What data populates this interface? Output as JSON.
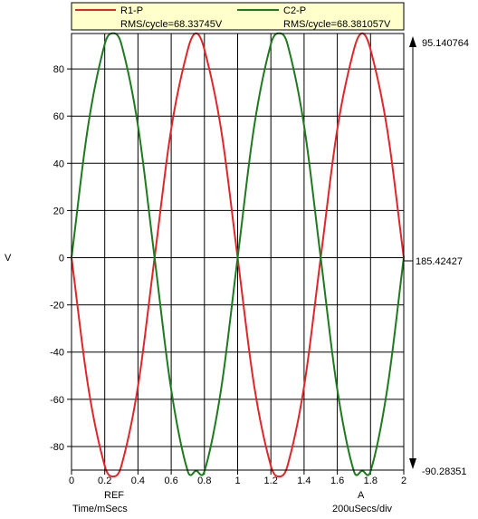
{
  "chart_data": {
    "type": "line",
    "ylabel": "V",
    "xlabel_units": "Time/mSecs",
    "timebase": "200uSecs/div",
    "cursor_ref_label": "REF",
    "cursor_a_label": "A",
    "xlim": [
      0,
      2
    ],
    "ylim": [
      -90,
      95
    ],
    "grid": true,
    "legend_position": "top",
    "x_ticks": [
      "0",
      "0.2",
      "0.4",
      "0.6",
      "0.8",
      "1",
      "1.2",
      "1.4",
      "1.6",
      "1.8",
      "2"
    ],
    "y_ticks": [
      "80",
      "60",
      "40",
      "20",
      "0",
      "-20",
      "-40",
      "-60",
      "-80"
    ],
    "right_axis": {
      "top_label": "95.140764",
      "mid_label": "185.42427",
      "bottom_label": "-90.28351"
    },
    "series": [
      {
        "name": "R1-P",
        "rms_label": "RMS/cycle=68.33745V",
        "color": "#e0262a",
        "x": [
          0,
          0.1,
          0.2,
          0.25,
          0.3,
          0.4,
          0.5,
          0.6,
          0.7,
          0.75,
          0.8,
          0.9,
          1.0,
          1.1,
          1.2,
          1.25,
          1.3,
          1.4,
          1.5,
          1.6,
          1.7,
          1.75,
          1.8,
          1.9,
          2.0
        ],
        "y": [
          0,
          -54.5,
          -88.2,
          -92.7,
          -88.2,
          -54.5,
          0,
          54.5,
          88.2,
          95.1,
          88.2,
          54.5,
          0,
          -54.5,
          -88.2,
          -92.7,
          -88.2,
          -54.5,
          0,
          54.5,
          88.2,
          95.1,
          88.2,
          54.5,
          0
        ]
      },
      {
        "name": "C2-P",
        "rms_label": "RMS/cycle=68.381057V",
        "color": "#1f7a1f",
        "x": [
          0,
          0.1,
          0.2,
          0.25,
          0.3,
          0.4,
          0.5,
          0.6,
          0.7,
          0.75,
          0.8,
          0.9,
          1.0,
          1.1,
          1.2,
          1.25,
          1.3,
          1.4,
          1.5,
          1.6,
          1.7,
          1.75,
          1.8,
          1.9,
          2.0
        ],
        "y": [
          0,
          55.9,
          90.5,
          95.1,
          90.5,
          55.9,
          0,
          -55.9,
          -90.5,
          -90.3,
          -90.5,
          -55.9,
          0,
          55.9,
          90.5,
          95.1,
          90.5,
          55.9,
          0,
          -55.9,
          -90.5,
          -90.3,
          -90.5,
          -55.9,
          0
        ]
      }
    ]
  }
}
